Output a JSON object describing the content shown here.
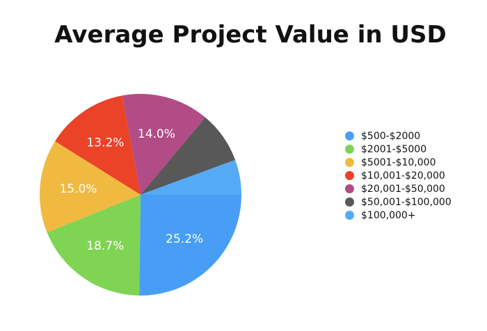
{
  "chart_data": {
    "type": "pie",
    "title": "Average Project Value in USD",
    "legend_position": "right",
    "slices": [
      {
        "label": "$500-$2000",
        "value": 25.2,
        "display": "25.2%",
        "color": "#489ef5"
      },
      {
        "label": "$2001-$5000",
        "value": 18.7,
        "display": "18.7%",
        "color": "#7fd454"
      },
      {
        "label": "$5001-$10,000",
        "value": 15.0,
        "display": "15.0%",
        "color": "#f0b940"
      },
      {
        "label": "$10,001-$20,000",
        "value": 13.2,
        "display": "13.2%",
        "color": "#ea4327"
      },
      {
        "label": "$20,001-$50,000",
        "value": 14.0,
        "display": "14.0%",
        "color": "#b24c87"
      },
      {
        "label": "$50,001-$100,000",
        "value": 8.3,
        "display": "",
        "color": "#585858"
      },
      {
        "label": "$100,000+",
        "value": 5.6,
        "display": "",
        "color": "#55aaf6"
      }
    ]
  }
}
